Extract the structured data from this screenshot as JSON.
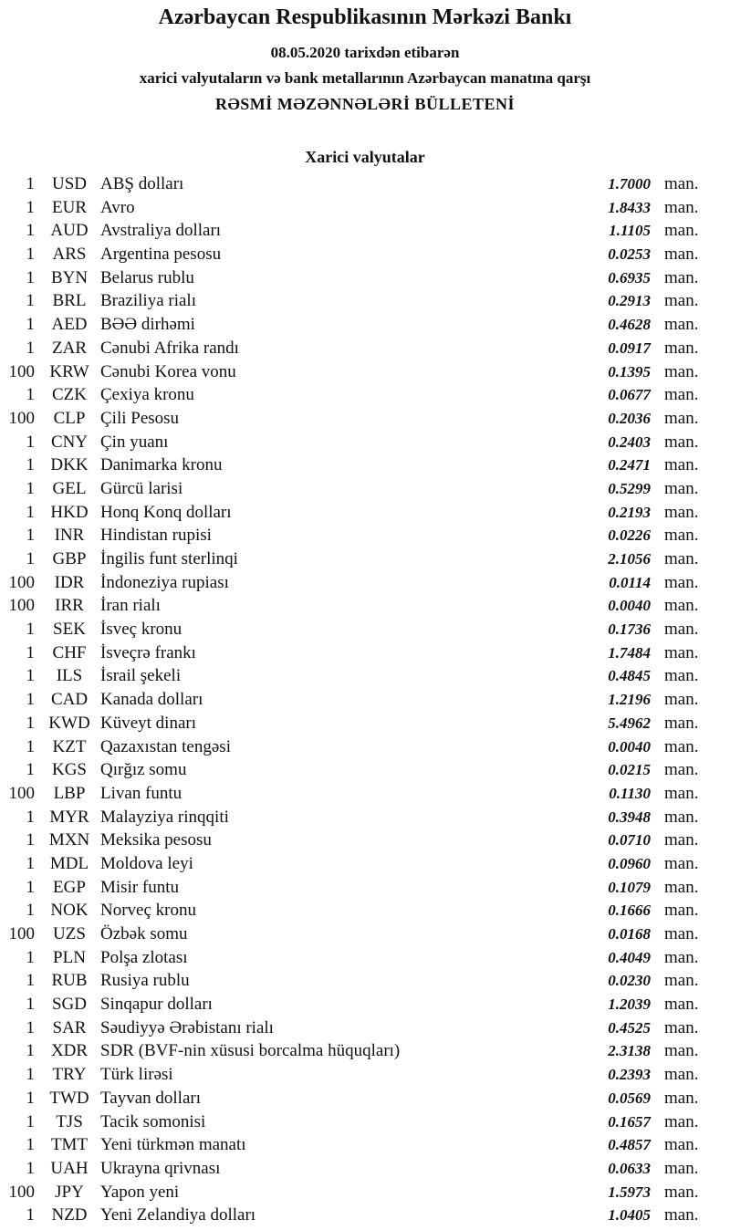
{
  "header": {
    "title": "Azərbaycan Respublikasının Mərkəzi Bankı",
    "date_line": "08.05.2020  tarixdən etibarən",
    "subtitle": "xarici valyutaların və bank metallarının Azərbaycan manatına qarşı",
    "bulletin": "RƏSMİ MƏZƏNNƏLƏRİ BÜLLETENİ",
    "section": "Xarici valyutalar"
  },
  "unit_label": "man.",
  "rates": [
    {
      "qty": "1",
      "code": "USD",
      "name": "ABŞ dolları",
      "value": "1.7000"
    },
    {
      "qty": "1",
      "code": "EUR",
      "name": "Avro",
      "value": "1.8433"
    },
    {
      "qty": "1",
      "code": "AUD",
      "name": "Avstraliya dolları",
      "value": "1.1105"
    },
    {
      "qty": "1",
      "code": "ARS",
      "name": "Argentina pesosu",
      "value": "0.0253"
    },
    {
      "qty": "1",
      "code": "BYN",
      "name": "Belarus rublu",
      "value": "0.6935"
    },
    {
      "qty": "1",
      "code": "BRL",
      "name": "Braziliya rialı",
      "value": "0.2913"
    },
    {
      "qty": "1",
      "code": "AED",
      "name": "BƏƏ dirhəmi",
      "value": "0.4628"
    },
    {
      "qty": "1",
      "code": "ZAR",
      "name": "Cənubi Afrika randı",
      "value": "0.0917"
    },
    {
      "qty": "100",
      "code": "KRW",
      "name": "Cənubi Korea vonu",
      "value": "0.1395"
    },
    {
      "qty": "1",
      "code": "CZK",
      "name": "Çexiya kronu",
      "value": "0.0677"
    },
    {
      "qty": "100",
      "code": "CLP",
      "name": "Çili Pesosu",
      "value": "0.2036"
    },
    {
      "qty": "1",
      "code": "CNY",
      "name": "Çin yuanı",
      "value": "0.2403"
    },
    {
      "qty": "1",
      "code": "DKK",
      "name": "Danimarka kronu",
      "value": "0.2471"
    },
    {
      "qty": "1",
      "code": "GEL",
      "name": "Gürcü larisi",
      "value": "0.5299"
    },
    {
      "qty": "1",
      "code": "HKD",
      "name": "Honq Konq dolları",
      "value": "0.2193"
    },
    {
      "qty": "1",
      "code": "INR",
      "name": "Hindistan rupisi",
      "value": "0.0226"
    },
    {
      "qty": "1",
      "code": "GBP",
      "name": "İngilis funt sterlinqi",
      "value": "2.1056"
    },
    {
      "qty": "100",
      "code": "IDR",
      "name": "İndoneziya rupiası",
      "value": "0.0114"
    },
    {
      "qty": "100",
      "code": "IRR",
      "name": "İran rialı",
      "value": "0.0040"
    },
    {
      "qty": "1",
      "code": "SEK",
      "name": "İsveç kronu",
      "value": "0.1736"
    },
    {
      "qty": "1",
      "code": "CHF",
      "name": "İsveçrə frankı",
      "value": "1.7484"
    },
    {
      "qty": "1",
      "code": "ILS",
      "name": "İsrail şekeli",
      "value": "0.4845"
    },
    {
      "qty": "1",
      "code": "CAD",
      "name": "Kanada dolları",
      "value": "1.2196"
    },
    {
      "qty": "1",
      "code": "KWD",
      "name": "Küveyt dinarı",
      "value": "5.4962"
    },
    {
      "qty": "1",
      "code": "KZT",
      "name": "Qazaxıstan tengəsi",
      "value": "0.0040"
    },
    {
      "qty": "1",
      "code": "KGS",
      "name": "Qırğız somu",
      "value": "0.0215"
    },
    {
      "qty": "100",
      "code": "LBP",
      "name": "Livan funtu",
      "value": "0.1130"
    },
    {
      "qty": "1",
      "code": "MYR",
      "name": "Malayziya rinqqiti",
      "value": "0.3948"
    },
    {
      "qty": "1",
      "code": "MXN",
      "name": "Meksika pesosu",
      "value": "0.0710"
    },
    {
      "qty": "1",
      "code": "MDL",
      "name": "Moldova leyi",
      "value": "0.0960"
    },
    {
      "qty": "1",
      "code": "EGP",
      "name": "Misir funtu",
      "value": "0.1079"
    },
    {
      "qty": "1",
      "code": "NOK",
      "name": "Norveç kronu",
      "value": "0.1666"
    },
    {
      "qty": "100",
      "code": "UZS",
      "name": "Özbək somu",
      "value": "0.0168"
    },
    {
      "qty": "1",
      "code": "PLN",
      "name": "Polşa zlotası",
      "value": "0.4049"
    },
    {
      "qty": "1",
      "code": "RUB",
      "name": "Rusiya rublu",
      "value": "0.0230"
    },
    {
      "qty": "1",
      "code": "SGD",
      "name": "Sinqapur dolları",
      "value": "1.2039"
    },
    {
      "qty": "1",
      "code": "SAR",
      "name": "Səudiyyə Ərəbistanı rialı",
      "value": "0.4525"
    },
    {
      "qty": "1",
      "code": "XDR",
      "name": "SDR (BVF-nin xüsusi borcalma hüquqları)",
      "value": "2.3138"
    },
    {
      "qty": "1",
      "code": "TRY",
      "name": "Türk lirəsi",
      "value": "0.2393"
    },
    {
      "qty": "1",
      "code": "TWD",
      "name": "Tayvan dolları",
      "value": "0.0569"
    },
    {
      "qty": "1",
      "code": "TJS",
      "name": "Tacik somonisi",
      "value": "0.1657"
    },
    {
      "qty": "1",
      "code": "TMT",
      "name": "Yeni türkmən manatı",
      "value": "0.4857"
    },
    {
      "qty": "1",
      "code": "UAH",
      "name": "Ukrayna qrivnası",
      "value": "0.0633"
    },
    {
      "qty": "100",
      "code": "JPY",
      "name": "Yapon yeni",
      "value": "1.5973"
    },
    {
      "qty": "1",
      "code": "NZD",
      "name": "Yeni Zelandiya dolları",
      "value": "1.0405"
    }
  ]
}
